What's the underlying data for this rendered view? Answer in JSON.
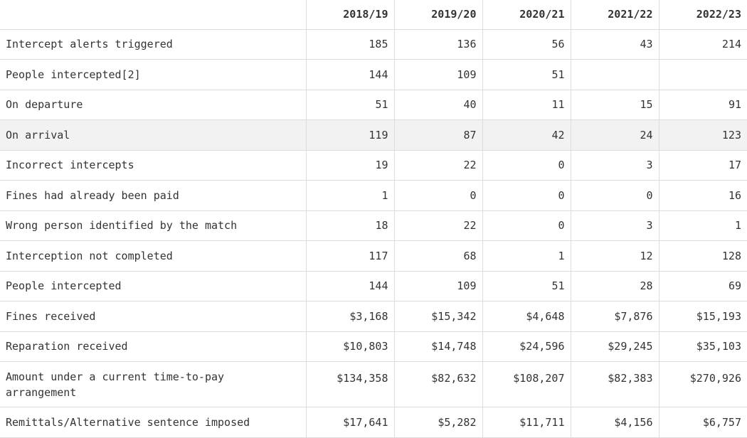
{
  "table": {
    "headers": [
      "",
      "2018/19",
      "2019/20",
      "2020/21",
      "2021/22",
      "2022/23"
    ],
    "rows": [
      {
        "label": "Intercept alerts triggered",
        "values": [
          "185",
          "136",
          "56",
          "43",
          "214"
        ]
      },
      {
        "label": "People intercepted[2]",
        "values": [
          "144",
          "109",
          "51",
          "",
          ""
        ]
      },
      {
        "label": "On departure",
        "values": [
          "51",
          "40",
          "11",
          "15",
          "91"
        ]
      },
      {
        "label": "On arrival",
        "values": [
          "119",
          "87",
          "42",
          "24",
          "123"
        ]
      },
      {
        "label": "Incorrect intercepts",
        "values": [
          "19",
          "22",
          "0",
          "3",
          "17"
        ]
      },
      {
        "label": "Fines had already been paid",
        "values": [
          "1",
          "0",
          "0",
          "0",
          "16"
        ]
      },
      {
        "label": "Wrong person identified by the match",
        "values": [
          "18",
          "22",
          "0",
          "3",
          "1"
        ]
      },
      {
        "label": "Interception not completed",
        "values": [
          "117",
          "68",
          "1",
          "12",
          "128"
        ]
      },
      {
        "label": "People intercepted",
        "values": [
          "144",
          "109",
          "51",
          "28",
          "69"
        ]
      },
      {
        "label": "Fines received",
        "values": [
          "$3,168",
          "$15,342",
          "$4,648",
          "$7,876",
          "$15,193"
        ]
      },
      {
        "label": "Reparation received",
        "values": [
          "$10,803",
          "$14,748",
          "$24,596",
          "$29,245",
          "$35,103"
        ]
      },
      {
        "label": "Amount under a current time-to-pay arrangement",
        "values": [
          "$134,358",
          "$82,632",
          "$108,207",
          "$82,383",
          "$270,926"
        ]
      },
      {
        "label": "Remittals/Alternative sentence imposed",
        "values": [
          "$17,641",
          "$5,282",
          "$11,711",
          "$4,156",
          "$6,757"
        ]
      }
    ]
  },
  "colors": {
    "text": "#333333",
    "border": "#dddddd",
    "highlight_row": "#f2f2f2"
  }
}
